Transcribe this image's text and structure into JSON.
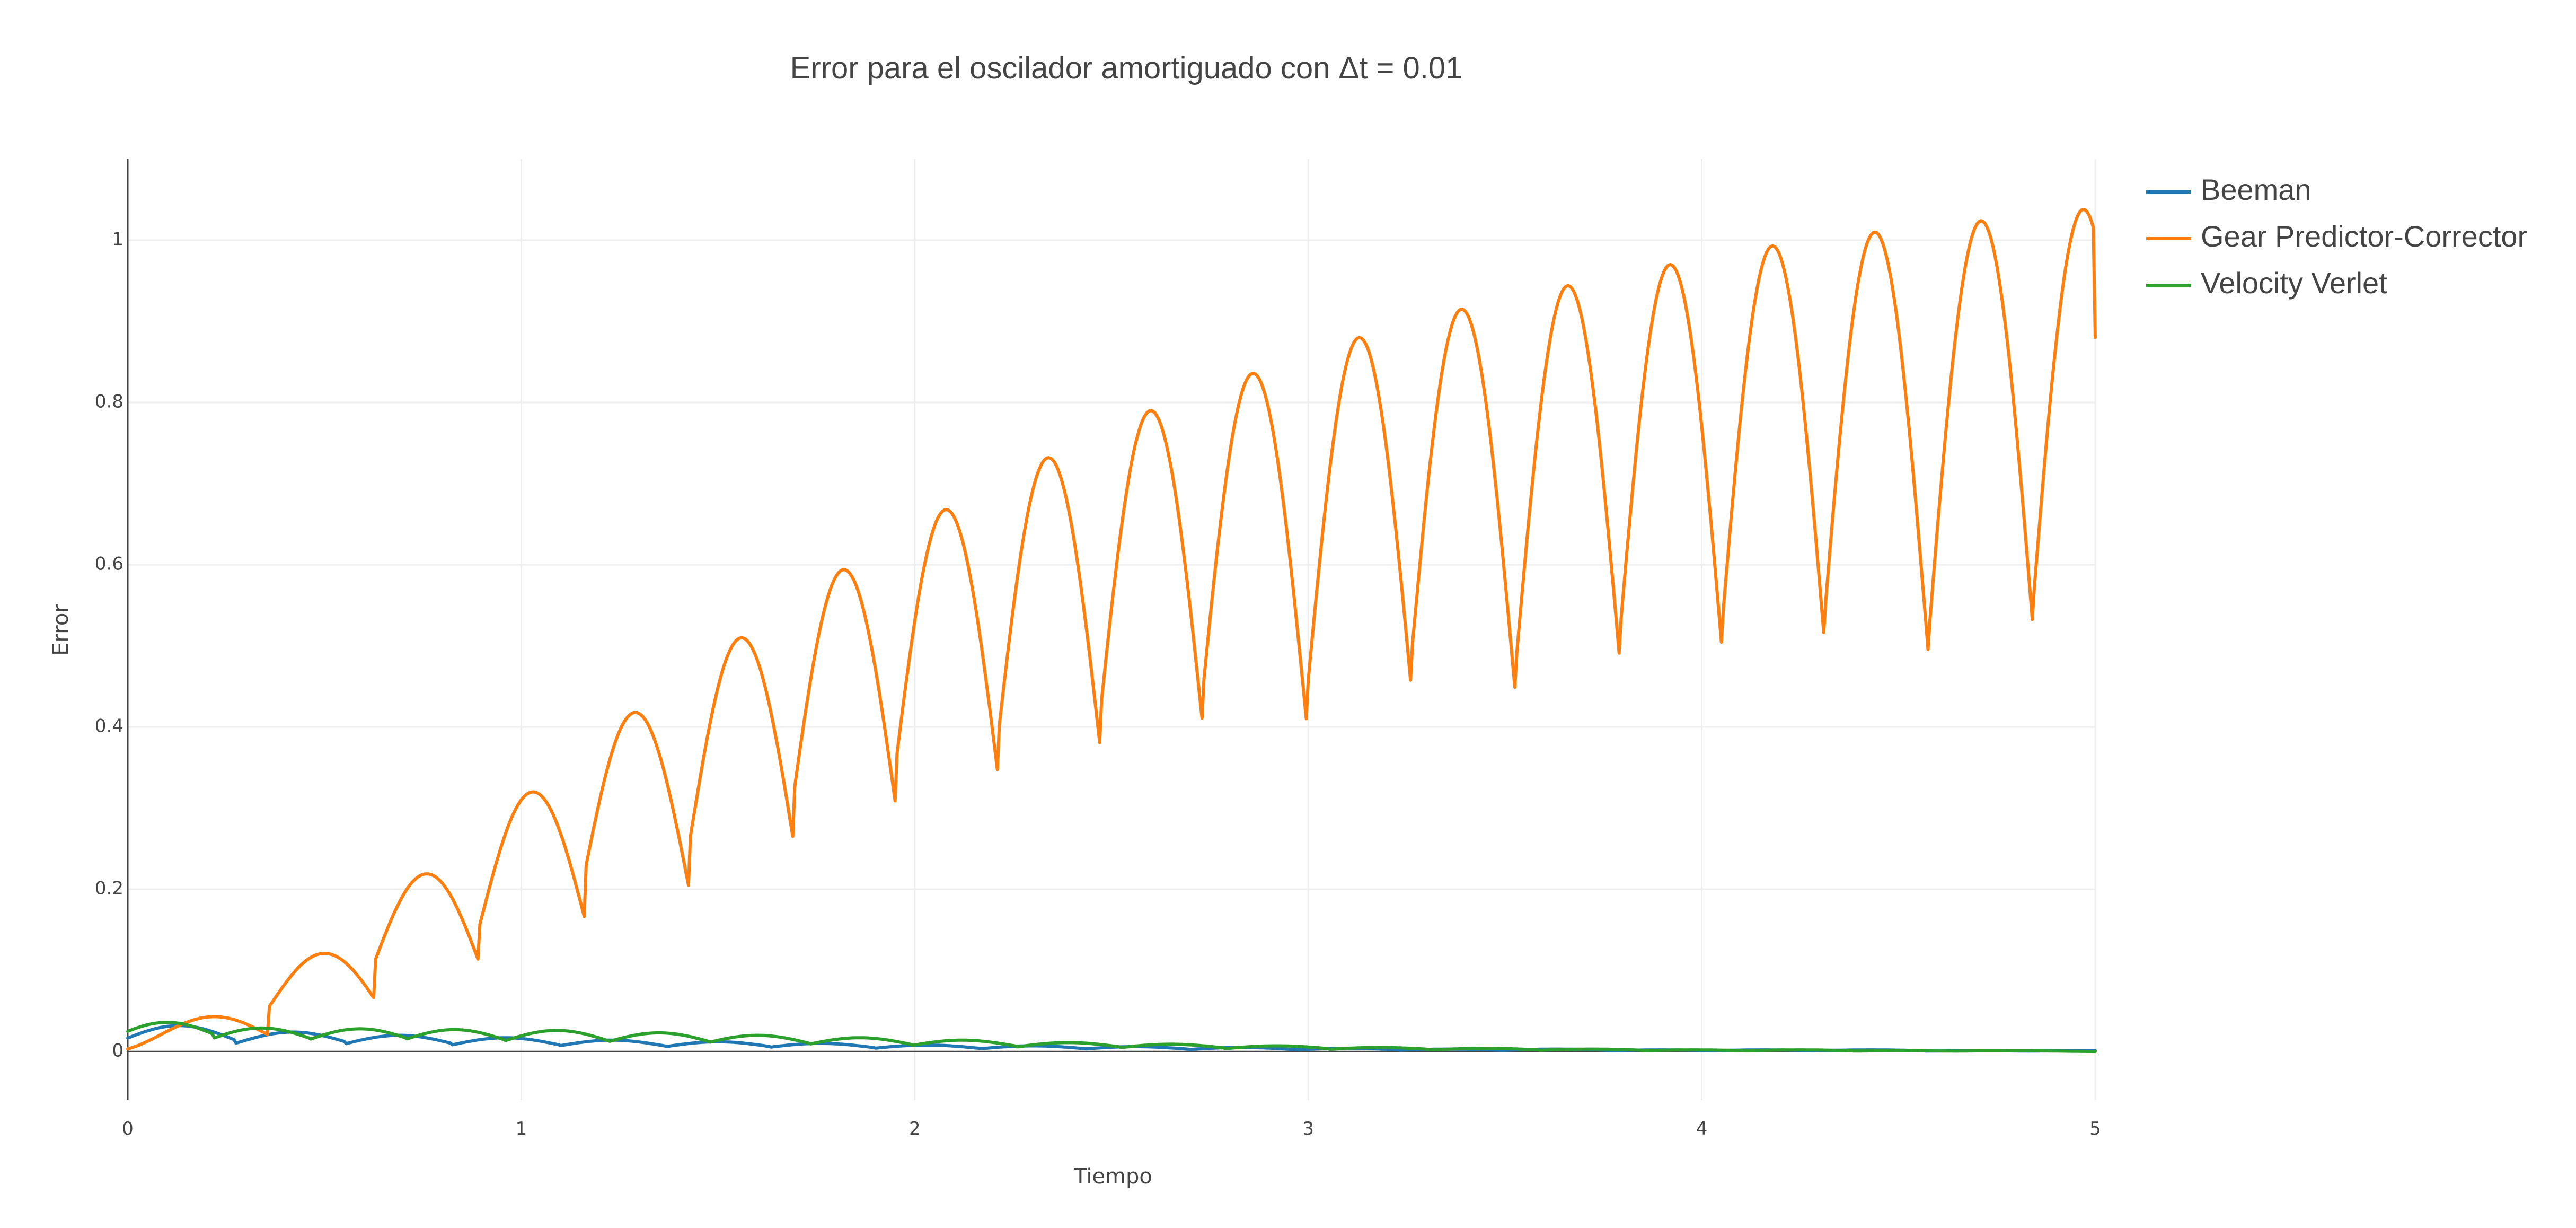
{
  "chart_data": {
    "type": "line",
    "title": "Error para el oscilador amortiguado con Δt = 0.01",
    "xlabel": "Tiempo",
    "ylabel": "Error",
    "xlim": [
      0,
      5
    ],
    "ylim": [
      -0.06,
      1.1
    ],
    "xticks": [
      0,
      1,
      2,
      3,
      4,
      5
    ],
    "xtick_labels": [
      "0",
      "1",
      "2",
      "3",
      "4",
      "5"
    ],
    "yticks": [
      0,
      0.2,
      0.4,
      0.6,
      0.8,
      1
    ],
    "ytick_labels": [
      "0",
      "0.2",
      "0.4",
      "0.6",
      "0.8",
      "1"
    ],
    "grid": true,
    "legend_position": "top-right-outside",
    "series": [
      {
        "name": "Beeman",
        "color": "#1f77b4",
        "period": 0.5337,
        "peaks": [
          [
            0.13,
            0.032
          ],
          [
            0.42,
            0.024
          ],
          [
            0.69,
            0.02
          ],
          [
            0.96,
            0.017
          ],
          [
            1.23,
            0.014
          ],
          [
            1.5,
            0.012
          ],
          [
            1.76,
            0.01
          ],
          [
            2.03,
            0.008
          ],
          [
            2.3,
            0.007
          ],
          [
            2.56,
            0.006
          ],
          [
            2.83,
            0.005
          ],
          [
            3.1,
            0.004
          ],
          [
            3.36,
            0.003
          ],
          [
            3.63,
            0.003
          ],
          [
            3.9,
            0.002
          ],
          [
            4.16,
            0.002
          ],
          [
            4.43,
            0.002
          ],
          [
            4.7,
            0.001
          ],
          [
            4.96,
            0.001
          ]
        ]
      },
      {
        "name": "Gear Predictor-Corrector",
        "color": "#ff7f0e",
        "period": 0.5337,
        "peaks": [
          [
            0.22,
            0.043
          ],
          [
            0.5,
            0.121
          ],
          [
            0.76,
            0.219
          ],
          [
            1.03,
            0.32
          ],
          [
            1.29,
            0.418
          ],
          [
            1.56,
            0.51
          ],
          [
            1.82,
            0.594
          ],
          [
            2.08,
            0.668
          ],
          [
            2.34,
            0.732
          ],
          [
            2.6,
            0.79
          ],
          [
            2.86,
            0.836
          ],
          [
            3.13,
            0.88
          ],
          [
            3.39,
            0.915
          ],
          [
            3.66,
            0.944
          ],
          [
            3.92,
            0.97
          ],
          [
            4.18,
            0.993
          ],
          [
            4.44,
            1.01
          ],
          [
            4.71,
            1.024
          ],
          [
            4.97,
            1.038
          ]
        ],
        "end_value": [
          5.0,
          0.88
        ]
      },
      {
        "name": "Velocity Verlet",
        "color": "#2ca02c",
        "period": 0.5337,
        "peaks": [
          [
            0.1,
            0.036
          ],
          [
            0.34,
            0.029
          ],
          [
            0.59,
            0.028
          ],
          [
            0.83,
            0.027
          ],
          [
            1.09,
            0.026
          ],
          [
            1.35,
            0.023
          ],
          [
            1.6,
            0.02
          ],
          [
            1.86,
            0.017
          ],
          [
            2.12,
            0.014
          ],
          [
            2.39,
            0.011
          ],
          [
            2.65,
            0.009
          ],
          [
            2.92,
            0.007
          ],
          [
            3.18,
            0.005
          ],
          [
            3.45,
            0.004
          ],
          [
            3.72,
            0.003
          ],
          [
            3.98,
            0.002
          ],
          [
            4.25,
            0.002
          ],
          [
            4.51,
            0.001
          ],
          [
            4.78,
            0.001
          ]
        ]
      }
    ]
  }
}
